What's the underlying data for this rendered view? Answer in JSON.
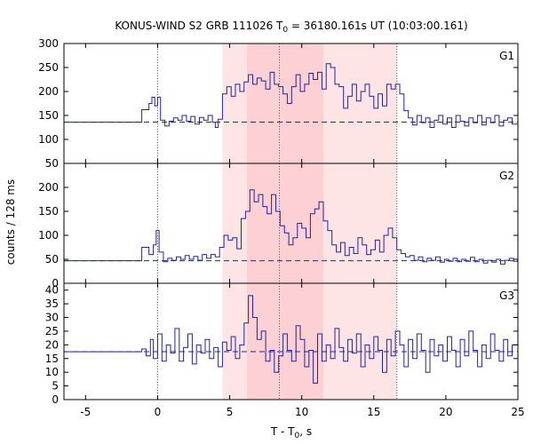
{
  "chart_data": {
    "type": "line",
    "title_main": "KONUS-WIND S2 GRB 111026 T",
    "title_sub": "0",
    "title_rest": " = 36180.161s UT (10:03:00.161)",
    "xlabel_main": "T - T",
    "xlabel_sub": "0",
    "xlabel_rest": ", s",
    "ylabel": "counts / 128 ms",
    "xlim": [
      -6.5,
      25
    ],
    "xticks": [
      -5,
      0,
      5,
      10,
      15,
      20,
      25
    ],
    "vlines": [
      0,
      8.45,
      16.6
    ],
    "vlines_panel": [
      0,
      16.6
    ],
    "shade_outer": [
      4.5,
      16.6
    ],
    "shade_inner": [
      6.2,
      11.5
    ],
    "colors": {
      "series": "#2222aa",
      "shade_outer": "#ffe4e6",
      "shade_inner": "#fdd0d4",
      "vline": "#555555"
    },
    "panels": [
      {
        "name": "G1",
        "ylim": [
          50,
          300
        ],
        "yticks": [
          50,
          100,
          150,
          200,
          250,
          300
        ],
        "background": 136,
        "series": {
          "t0": -4.5,
          "step": 0.128,
          "pre": {
            "x": [
              -6.5,
              -1.1,
              -1.1
            ],
            "y": [
              136,
              136,
              162
            ]
          },
          "points": [
            [
              -1.1,
              162
            ],
            [
              -0.6,
              175
            ],
            [
              -0.4,
              188
            ],
            [
              -0.2,
              170
            ],
            [
              0,
              188
            ],
            [
              0.2,
              140
            ],
            [
              0.5,
              128
            ],
            [
              0.8,
              138
            ],
            [
              1.1,
              145
            ],
            [
              1.4,
              140
            ],
            [
              1.7,
              150
            ],
            [
              2.0,
              138
            ],
            [
              2.3,
              148
            ],
            [
              2.6,
              132
            ],
            [
              2.9,
              146
            ],
            [
              3.2,
              140
            ],
            [
              3.5,
              150
            ],
            [
              3.8,
              136
            ],
            [
              4.0,
              125
            ],
            [
              4.2,
              142
            ],
            [
              4.5,
              195
            ],
            [
              4.8,
              210
            ],
            [
              5.1,
              190
            ],
            [
              5.4,
              215
            ],
            [
              5.7,
              200
            ],
            [
              6.0,
              220
            ],
            [
              6.3,
              235
            ],
            [
              6.6,
              215
            ],
            [
              6.9,
              228
            ],
            [
              7.2,
              222
            ],
            [
              7.5,
              205
            ],
            [
              7.8,
              240
            ],
            [
              8.1,
              215
            ],
            [
              8.4,
              210
            ],
            [
              8.7,
              195
            ],
            [
              9.0,
              175
            ],
            [
              9.3,
              210
            ],
            [
              9.6,
              235
            ],
            [
              9.9,
              200
            ],
            [
              10.2,
              215
            ],
            [
              10.5,
              238
            ],
            [
              10.8,
              225
            ],
            [
              11.1,
              240
            ],
            [
              11.4,
              205
            ],
            [
              11.7,
              258
            ],
            [
              12.0,
              250
            ],
            [
              12.3,
              215
            ],
            [
              12.6,
              210
            ],
            [
              12.9,
              165
            ],
            [
              13.2,
              190
            ],
            [
              13.5,
              215
            ],
            [
              13.8,
              180
            ],
            [
              14.1,
              200
            ],
            [
              14.4,
              215
            ],
            [
              14.7,
              190
            ],
            [
              15.0,
              165
            ],
            [
              15.3,
              195
            ],
            [
              15.6,
              170
            ],
            [
              15.9,
              215
            ],
            [
              16.2,
              205
            ],
            [
              16.5,
              215
            ],
            [
              16.8,
              195
            ],
            [
              17.1,
              160
            ],
            [
              17.4,
              145
            ],
            [
              17.7,
              130
            ],
            [
              18.0,
              150
            ],
            [
              18.3,
              135
            ],
            [
              18.6,
              145
            ],
            [
              18.9,
              125
            ],
            [
              19.2,
              140
            ],
            [
              19.5,
              150
            ],
            [
              19.8,
              132
            ],
            [
              20.1,
              145
            ],
            [
              20.4,
              125
            ],
            [
              20.7,
              150
            ],
            [
              21.0,
              138
            ],
            [
              21.3,
              128
            ],
            [
              21.6,
              145
            ],
            [
              21.9,
              135
            ],
            [
              22.2,
              150
            ],
            [
              22.5,
              130
            ],
            [
              22.8,
              145
            ],
            [
              23.1,
              135
            ],
            [
              23.4,
              150
            ],
            [
              23.7,
              128
            ],
            [
              24.0,
              140
            ],
            [
              24.3,
              145
            ],
            [
              24.6,
              132
            ],
            [
              25.0,
              140
            ]
          ]
        }
      },
      {
        "name": "G2",
        "ylim": [
          0,
          250
        ],
        "yticks": [
          0,
          50,
          100,
          150,
          200
        ],
        "background": 47,
        "series": {
          "pre": {
            "x": [
              -6.5,
              -1.1,
              -1.1
            ],
            "y": [
              47,
              47,
              75
            ]
          },
          "points": [
            [
              -1.1,
              75
            ],
            [
              -0.6,
              60
            ],
            [
              -0.3,
              80
            ],
            [
              -0.1,
              110
            ],
            [
              0.1,
              65
            ],
            [
              0.4,
              45
            ],
            [
              0.7,
              52
            ],
            [
              1.0,
              48
            ],
            [
              1.3,
              55
            ],
            [
              1.6,
              50
            ],
            [
              1.9,
              58
            ],
            [
              2.2,
              50
            ],
            [
              2.5,
              56
            ],
            [
              2.8,
              48
            ],
            [
              3.1,
              60
            ],
            [
              3.4,
              52
            ],
            [
              3.7,
              60
            ],
            [
              4.0,
              55
            ],
            [
              4.3,
              75
            ],
            [
              4.6,
              100
            ],
            [
              4.9,
              90
            ],
            [
              5.2,
              95
            ],
            [
              5.5,
              72
            ],
            [
              5.8,
              135
            ],
            [
              6.1,
              150
            ],
            [
              6.4,
              195
            ],
            [
              6.7,
              170
            ],
            [
              7.0,
              185
            ],
            [
              7.3,
              160
            ],
            [
              7.6,
              145
            ],
            [
              7.9,
              185
            ],
            [
              8.2,
              150
            ],
            [
              8.5,
              120
            ],
            [
              8.8,
              105
            ],
            [
              9.1,
              80
            ],
            [
              9.4,
              95
            ],
            [
              9.7,
              125
            ],
            [
              10.0,
              115
            ],
            [
              10.3,
              95
            ],
            [
              10.6,
              145
            ],
            [
              10.9,
              155
            ],
            [
              11.2,
              170
            ],
            [
              11.5,
              130
            ],
            [
              11.8,
              110
            ],
            [
              12.1,
              80
            ],
            [
              12.4,
              65
            ],
            [
              12.7,
              85
            ],
            [
              13.0,
              58
            ],
            [
              13.3,
              75
            ],
            [
              13.6,
              62
            ],
            [
              13.9,
              95
            ],
            [
              14.2,
              80
            ],
            [
              14.5,
              60
            ],
            [
              14.8,
              70
            ],
            [
              15.1,
              90
            ],
            [
              15.4,
              65
            ],
            [
              15.7,
              100
            ],
            [
              16.0,
              115
            ],
            [
              16.3,
              95
            ],
            [
              16.6,
              70
            ],
            [
              16.9,
              62
            ],
            [
              17.2,
              55
            ],
            [
              17.5,
              58
            ],
            [
              17.8,
              48
            ],
            [
              18.1,
              55
            ],
            [
              18.4,
              45
            ],
            [
              18.7,
              52
            ],
            [
              19.0,
              48
            ],
            [
              19.3,
              55
            ],
            [
              19.6,
              44
            ],
            [
              19.9,
              50
            ],
            [
              20.2,
              46
            ],
            [
              20.5,
              52
            ],
            [
              20.8,
              45
            ],
            [
              21.1,
              50
            ],
            [
              21.4,
              46
            ],
            [
              21.7,
              54
            ],
            [
              22.0,
              45
            ],
            [
              22.3,
              50
            ],
            [
              22.6,
              42
            ],
            [
              22.9,
              48
            ],
            [
              23.2,
              44
            ],
            [
              23.5,
              50
            ],
            [
              23.8,
              40
            ],
            [
              24.1,
              48
            ],
            [
              24.4,
              52
            ],
            [
              24.7,
              46
            ],
            [
              25.0,
              48
            ]
          ]
        }
      },
      {
        "name": "G3",
        "ylim": [
          0,
          42.5
        ],
        "yticks": [
          0,
          5,
          10,
          15,
          20,
          25,
          30,
          35,
          40
        ],
        "background": 17.5,
        "series": {
          "pre": {
            "x": [
              -6.5,
              -1.1,
              -1.1
            ],
            "y": [
              17.5,
              17.5,
              18.5
            ]
          },
          "points": [
            [
              -1.1,
              18.5
            ],
            [
              -0.8,
              16
            ],
            [
              -0.5,
              22
            ],
            [
              -0.3,
              15
            ],
            [
              0,
              24
            ],
            [
              0.3,
              14
            ],
            [
              0.6,
              20
            ],
            [
              0.9,
              17
            ],
            [
              1.2,
              26
            ],
            [
              1.5,
              14
            ],
            [
              1.8,
              19
            ],
            [
              2.1,
              24
            ],
            [
              2.4,
              13
            ],
            [
              2.7,
              20
            ],
            [
              3.0,
              17
            ],
            [
              3.3,
              22
            ],
            [
              3.6,
              15
            ],
            [
              3.9,
              19
            ],
            [
              4.2,
              12
            ],
            [
              4.5,
              21
            ],
            [
              4.8,
              18
            ],
            [
              5.1,
              23
            ],
            [
              5.4,
              15
            ],
            [
              5.7,
              20
            ],
            [
              6.0,
              28
            ],
            [
              6.3,
              38
            ],
            [
              6.6,
              30
            ],
            [
              6.9,
              22
            ],
            [
              7.2,
              25
            ],
            [
              7.5,
              14
            ],
            [
              7.8,
              18
            ],
            [
              8.1,
              10
            ],
            [
              8.4,
              16
            ],
            [
              8.7,
              24
            ],
            [
              9.0,
              18
            ],
            [
              9.3,
              14
            ],
            [
              9.6,
              27
            ],
            [
              9.9,
              22
            ],
            [
              10.2,
              12
            ],
            [
              10.5,
              18
            ],
            [
              10.8,
              6
            ],
            [
              11.1,
              24
            ],
            [
              11.4,
              14
            ],
            [
              11.7,
              20
            ],
            [
              12.0,
              15
            ],
            [
              12.3,
              26
            ],
            [
              12.6,
              19
            ],
            [
              12.9,
              14
            ],
            [
              13.2,
              22
            ],
            [
              13.5,
              17
            ],
            [
              13.8,
              24
            ],
            [
              14.1,
              12
            ],
            [
              14.4,
              20
            ],
            [
              14.7,
              15
            ],
            [
              15.0,
              23
            ],
            [
              15.3,
              18
            ],
            [
              15.6,
              10
            ],
            [
              15.9,
              22
            ],
            [
              16.2,
              16
            ],
            [
              16.5,
              25
            ],
            [
              16.8,
              20
            ],
            [
              17.1,
              12
            ],
            [
              17.4,
              22
            ],
            [
              17.7,
              15
            ],
            [
              18.0,
              24
            ],
            [
              18.3,
              18
            ],
            [
              18.6,
              10
            ],
            [
              18.9,
              22
            ],
            [
              19.2,
              16
            ],
            [
              19.5,
              20
            ],
            [
              19.8,
              14
            ],
            [
              20.1,
              23
            ],
            [
              20.4,
              18
            ],
            [
              20.7,
              12
            ],
            [
              21.0,
              22
            ],
            [
              21.3,
              16
            ],
            [
              21.6,
              25
            ],
            [
              21.9,
              18
            ],
            [
              22.2,
              12
            ],
            [
              22.5,
              20
            ],
            [
              22.8,
              15
            ],
            [
              23.1,
              24
            ],
            [
              23.4,
              18
            ],
            [
              23.7,
              14
            ],
            [
              24.0,
              22
            ],
            [
              24.3,
              16
            ],
            [
              24.6,
              20
            ],
            [
              25.0,
              18
            ]
          ]
        }
      }
    ]
  }
}
